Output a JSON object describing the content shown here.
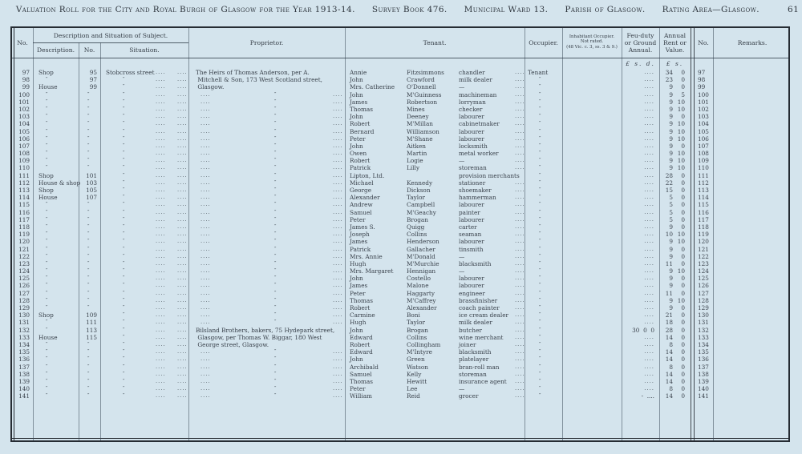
{
  "page": {
    "title_segments": [
      "Valuation Roll for the City and Royal Burgh of Glasgow for the Year 1913-14.",
      "Survey Book 476.",
      "Municipal Ward 13.",
      "Parish of Glasgow.",
      "Rating Area—Glasgow."
    ],
    "page_number": "61"
  },
  "table": {
    "headers": {
      "no_left": "No.",
      "desc_situation_group": "Description and Situation of Subject.",
      "description": "Description.",
      "no_mid": "No.",
      "situation": "Situation.",
      "proprietor": "Proprietor.",
      "tenant": "Tenant.",
      "occupier": "Occupier.",
      "inhabitant_line1": "Inhabitant Occupier.",
      "inhabitant_line2": "Not rated.",
      "inhabitant_line3": "(48 Vic. c. 3, ss. 3 & 9.)",
      "feu_duty": "Feu-duty or Ground Annual.",
      "annual_rent": "Annual Rent or Value.",
      "no_right": "No.",
      "remarks": "Remarks.",
      "feu_currency": "£ s. d.",
      "rent_currency": "£ s."
    },
    "marks": {
      "ditto": "″",
      "dots": "....",
      "dash": "—"
    },
    "row_fields": [
      "no",
      "description",
      "street_no",
      "situation",
      "proprietor_line",
      "tenant_first",
      "tenant_surname",
      "tenant_occupation",
      "occupier",
      "feu_duty",
      "rent_pounds",
      "rent_shillings",
      "no_repeat"
    ],
    "rows": [
      [
        "97",
        "Shop",
        "95",
        "Stobcross street",
        "The Heirs of Thomas Anderson, per A.",
        "Annie",
        "Fitzsimmons",
        "chandler",
        "Tenant",
        "....",
        "34",
        "0",
        "97"
      ],
      [
        "98",
        "″",
        "97",
        "″",
        " Mitchell & Son, 173 West Scotland street,",
        "John",
        "Crawford",
        "milk dealer",
        "″",
        "....",
        "23",
        "0",
        "98"
      ],
      [
        "99",
        "House",
        "99",
        "″",
        " Glasgow.",
        "Mrs. Catherine",
        "O'Donnell",
        "—",
        "″",
        "....",
        "9",
        "0",
        "99"
      ],
      [
        "100",
        "″",
        "″",
        "″",
        null,
        "John",
        "M'Guinness",
        "machineman",
        "″",
        "....",
        "9",
        "5",
        "100"
      ],
      [
        "101",
        "″",
        "″",
        "″",
        null,
        "James",
        "Robertson",
        "lorryman",
        "″",
        "....",
        "9",
        "10",
        "101"
      ],
      [
        "102",
        "″",
        "″",
        "″",
        null,
        "Thomas",
        "Mines",
        "checker",
        "″",
        "....",
        "9",
        "10",
        "102"
      ],
      [
        "103",
        "″",
        "″",
        "″",
        null,
        "John",
        "Deeney",
        "labourer",
        "″",
        "....",
        "9",
        "0",
        "103"
      ],
      [
        "104",
        "″",
        "″",
        "″",
        null,
        "Robert",
        "M'Millan",
        "cabinetmaker",
        "″",
        "....",
        "9",
        "10",
        "104"
      ],
      [
        "105",
        "″",
        "″",
        "″",
        null,
        "Bernard",
        "Williamson",
        "labourer",
        "″",
        "....",
        "9",
        "10",
        "105"
      ],
      [
        "106",
        "″",
        "″",
        "″",
        null,
        "Peter",
        "M'Shane",
        "labourer",
        "″",
        "....",
        "9",
        "10",
        "106"
      ],
      [
        "107",
        "″",
        "″",
        "″",
        null,
        "John",
        "Aitken",
        "locksmith",
        "″",
        "....",
        "9",
        "0",
        "107"
      ],
      [
        "108",
        "″",
        "″",
        "″",
        null,
        "Owen",
        "Martin",
        "metal worker",
        "″",
        "....",
        "9",
        "10",
        "108"
      ],
      [
        "109",
        "″",
        "″",
        "″",
        null,
        "Robert",
        "Logie",
        "—",
        "″",
        "....",
        "9",
        "10",
        "109"
      ],
      [
        "110",
        "″",
        "″",
        "″",
        null,
        "Patrick",
        "Lilly",
        "storeman",
        "″",
        "....",
        "9",
        "10",
        "110"
      ],
      [
        "111",
        "Shop",
        "101",
        "″",
        null,
        "Lipton, Ltd.",
        "",
        "provision merchants",
        "″",
        "....",
        "28",
        "0",
        "111"
      ],
      [
        "112",
        "House & shop",
        "103",
        "″",
        null,
        "Michael",
        "Kennedy",
        "stationer",
        "″",
        "....",
        "22",
        "0",
        "112"
      ],
      [
        "113",
        "Shop",
        "105",
        "″",
        null,
        "George",
        "Dickson",
        "shoemaker",
        "″",
        "....",
        "15",
        "0",
        "113"
      ],
      [
        "114",
        "House",
        "107",
        "″",
        null,
        "Alexander",
        "Taylor",
        "hammerman",
        "″",
        "....",
        "5",
        "0",
        "114"
      ],
      [
        "115",
        "″",
        "″",
        "″",
        null,
        "Andrew",
        "Campbell",
        "labourer",
        "″",
        "....",
        "5",
        "0",
        "115"
      ],
      [
        "116",
        "″",
        "″",
        "″",
        null,
        "Samuel",
        "M'Geachy",
        "painter",
        "″",
        "....",
        "5",
        "0",
        "116"
      ],
      [
        "117",
        "″",
        "″",
        "″",
        null,
        "Peter",
        "Brogan",
        "labourer",
        "″",
        "....",
        "5",
        "0",
        "117"
      ],
      [
        "118",
        "″",
        "″",
        "″",
        null,
        "James S.",
        "Quigg",
        "carter",
        "″",
        "....",
        "9",
        "0",
        "118"
      ],
      [
        "119",
        "″",
        "″",
        "″",
        null,
        "Joseph",
        "Collins",
        "seaman",
        "″",
        "....",
        "10",
        "10",
        "119"
      ],
      [
        "120",
        "″",
        "″",
        "″",
        null,
        "James",
        "Henderson",
        "labourer",
        "″",
        "....",
        "9",
        "10",
        "120"
      ],
      [
        "121",
        "″",
        "″",
        "″",
        null,
        "Patrick",
        "Gallacher",
        "tinsmith",
        "″",
        "....",
        "9",
        "0",
        "121"
      ],
      [
        "122",
        "″",
        "″",
        "″",
        null,
        "Mrs. Annie",
        "M'Donald",
        "—",
        "″",
        "....",
        "9",
        "0",
        "122"
      ],
      [
        "123",
        "″",
        "″",
        "″",
        null,
        "Hugh",
        "M'Murchie",
        "blacksmith",
        "″",
        "....",
        "11",
        "0",
        "123"
      ],
      [
        "124",
        "″",
        "″",
        "″",
        null,
        "Mrs. Margaret",
        "Hennigan",
        "—",
        "″",
        "....",
        "9",
        "10",
        "124"
      ],
      [
        "125",
        "″",
        "″",
        "″",
        null,
        "John",
        "Costello",
        "labourer",
        "″",
        "....",
        "9",
        "0",
        "125"
      ],
      [
        "126",
        "″",
        "″",
        "″",
        null,
        "James",
        "Malone",
        "labourer",
        "″",
        "....",
        "9",
        "0",
        "126"
      ],
      [
        "127",
        "″",
        "″",
        "″",
        null,
        "Peter",
        "Haggarty",
        "engineer",
        "″",
        "....",
        "11",
        "0",
        "127"
      ],
      [
        "128",
        "″",
        "″",
        "″",
        null,
        "Thomas",
        "M'Caffrey",
        "brassfinisher",
        "″",
        "....",
        "9",
        "10",
        "128"
      ],
      [
        "129",
        "″",
        "″",
        "″",
        null,
        "Robert",
        "Alexander",
        "coach painter",
        "″",
        "....",
        "9",
        "0",
        "129"
      ],
      [
        "130",
        "Shop",
        "109",
        "″",
        null,
        "Carmine",
        "Boni",
        "ice cream dealer",
        "″",
        "....",
        "21",
        "0",
        "130"
      ],
      [
        "131",
        "″",
        "111",
        "″",
        null,
        "Hugh",
        "Taylor",
        "milk dealer",
        "″",
        "....",
        "18",
        "0",
        "131"
      ],
      [
        "132",
        "″",
        "113",
        "″",
        "Bilsland Brothers, bakers, 75 Hydepark street,",
        "John",
        "Brogan",
        "butcher",
        "″",
        "30  0  0",
        "28",
        "0",
        "132"
      ],
      [
        "133",
        "House",
        "115",
        "″",
        " Glasgow, per Thomas W. Biggar, 180 West",
        "Edward",
        "Collins",
        "wine merchant",
        "″",
        "....",
        "14",
        "0",
        "133"
      ],
      [
        "134",
        "″",
        "″",
        "″",
        " George street, Glasgow.",
        "Robert",
        "Collingham",
        "joiner",
        "″",
        "....",
        "8",
        "0",
        "134"
      ],
      [
        "135",
        "″",
        "″",
        "″",
        null,
        "Edward",
        "M'Intyre",
        "blacksmith",
        "″",
        "....",
        "14",
        "0",
        "135"
      ],
      [
        "136",
        "″",
        "″",
        "″",
        null,
        "John",
        "Green",
        "platelayer",
        "″",
        "....",
        "14",
        "0",
        "136"
      ],
      [
        "137",
        "″",
        "″",
        "″",
        null,
        "Archibald",
        "Watson",
        "bran-roll man",
        "″",
        "....",
        "8",
        "0",
        "137"
      ],
      [
        "138",
        "″",
        "″",
        "″",
        null,
        "Samuel",
        "Kelly",
        "storeman",
        "″",
        "....",
        "14",
        "0",
        "138"
      ],
      [
        "139",
        "″",
        "″",
        "″",
        null,
        "Thomas",
        "Hewitt",
        "insurance agent",
        "″",
        "....",
        "14",
        "0",
        "139"
      ],
      [
        "140",
        "″",
        "″",
        "″",
        null,
        "Peter",
        "Lee",
        "—",
        "″",
        "....",
        "8",
        "0",
        "140"
      ],
      [
        "141",
        "″",
        "″",
        "″",
        null,
        "William",
        "Reid",
        "grocer",
        "″",
        "-  ....",
        "14",
        "0",
        "141"
      ]
    ]
  }
}
